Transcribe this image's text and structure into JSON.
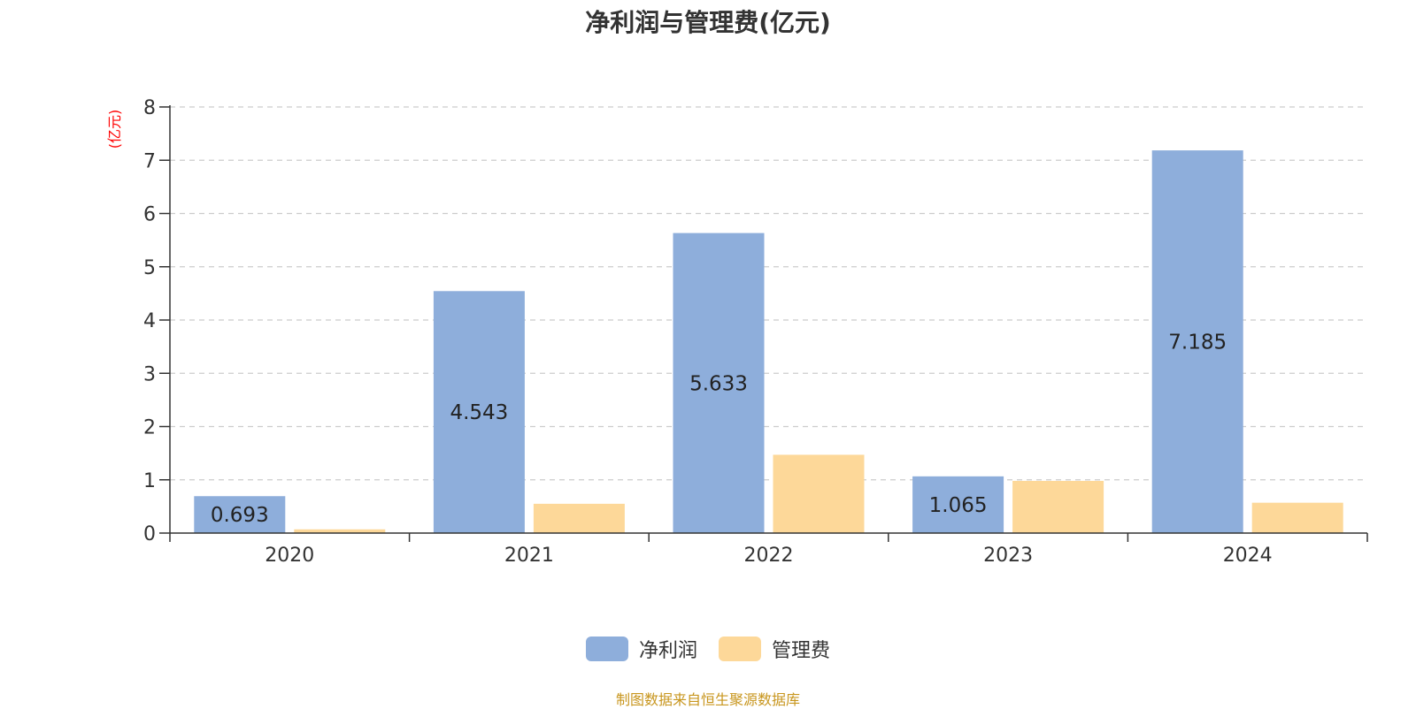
{
  "title": "净利润与管理费(亿元)",
  "source_note": "制图数据来自恒生聚源数据库",
  "chart_data": {
    "type": "bar",
    "title": "净利润与管理费(亿元)",
    "ylabel": "(亿元)",
    "xlabel": "",
    "categories": [
      "2020",
      "2021",
      "2022",
      "2023",
      "2024"
    ],
    "ylim": [
      0,
      8
    ],
    "yticks": [
      0,
      1,
      2,
      3,
      4,
      5,
      6,
      7,
      8
    ],
    "grid": true,
    "legend_position": "bottom",
    "series": [
      {
        "name": "净利润",
        "color": "#8eaedb",
        "values": [
          0.693,
          4.543,
          5.633,
          1.065,
          7.185
        ],
        "show_labels": true
      },
      {
        "name": "管理费",
        "color": "#fdd899",
        "values": [
          0.07,
          0.55,
          1.47,
          0.98,
          0.57
        ],
        "show_labels": false
      }
    ]
  },
  "colors": {
    "ylabel": "#ff0000",
    "source": "#c8961e",
    "axis": "#333333",
    "grid": "#cccccc"
  }
}
